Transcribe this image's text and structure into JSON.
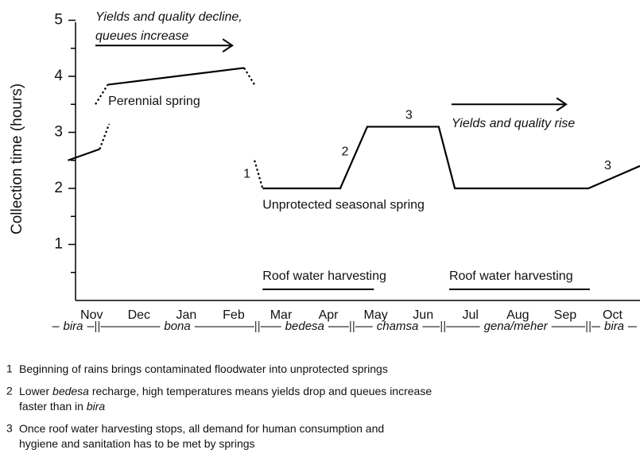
{
  "chart_data": {
    "type": "line",
    "y_label": "Collection time (hours)",
    "categories": [
      "Nov",
      "Dec",
      "Jan",
      "Feb",
      "Mar",
      "Apr",
      "May",
      "Jun",
      "Jul",
      "Aug",
      "Sep",
      "Oct"
    ],
    "xlim": [
      -0.34,
      11.58
    ],
    "ylim": [
      0,
      5
    ],
    "yticks": [
      1,
      2,
      3,
      4,
      5
    ],
    "yminorticks": [
      0.5,
      1.5,
      2.5,
      3.5,
      4.5
    ],
    "color": "#000000",
    "series": [
      {
        "style": "solid",
        "x": [
          -0.5,
          0.17
        ],
        "values": [
          2.5,
          2.7
        ]
      },
      {
        "style": "dotted",
        "x": [
          0.17,
          0.37
        ],
        "values": [
          2.7,
          3.15
        ]
      },
      {
        "style": "dotted",
        "x": [
          0.08,
          0.34
        ],
        "values": [
          3.5,
          3.85
        ]
      },
      {
        "style": "solid",
        "x": [
          0.34,
          3.22
        ],
        "values": [
          3.85,
          4.15
        ]
      },
      {
        "style": "dotted",
        "x": [
          3.22,
          3.44
        ],
        "values": [
          4.15,
          3.85
        ]
      },
      {
        "style": "dotted",
        "x": [
          3.44,
          3.61
        ],
        "values": [
          2.5,
          2.0
        ]
      },
      {
        "style": "solid",
        "x": [
          3.61,
          5.25,
          5.82,
          7.33,
          7.67,
          10.49,
          11.58
        ],
        "values": [
          2.0,
          2.0,
          3.1,
          3.1,
          2.0,
          2.0,
          2.4
        ]
      }
    ],
    "annotations": [
      {
        "text": "Perennial spring",
        "x": 0.35,
        "y": 3.55
      },
      {
        "text": "Unprotected seasonal spring",
        "x": 3.61,
        "y": 1.7
      },
      {
        "text": "1",
        "x": 3.28,
        "y": 2.25
      },
      {
        "text": "2",
        "x": 5.35,
        "y": 2.65
      },
      {
        "text": "3",
        "x": 6.7,
        "y": 3.3
      },
      {
        "text": "3",
        "x": 10.9,
        "y": 2.4
      }
    ],
    "arrows": [
      {
        "lines": [
          "Yields and quality decline,",
          "queues increase"
        ],
        "x": [
          0.08,
          2.97
        ],
        "y": 4.55,
        "text_y": 5.05
      },
      {
        "lines": [
          "Yields and quality rise"
        ],
        "x": [
          7.6,
          10.02
        ],
        "y": 3.5,
        "text_y": 3.15
      }
    ],
    "periods": [
      {
        "label": "Roof water harvesting",
        "x": [
          3.61,
          5.96
        ]
      },
      {
        "label": "Roof water harvesting",
        "x": [
          7.55,
          10.52
        ]
      }
    ],
    "seasons": [
      {
        "label": "bira",
        "x": [
          -0.9,
          0.12
        ]
      },
      {
        "label": "bona",
        "x": [
          0.12,
          3.5
        ]
      },
      {
        "label": "bedesa",
        "x": [
          3.5,
          5.5
        ]
      },
      {
        "label": "chamsa",
        "x": [
          5.5,
          7.42
        ]
      },
      {
        "label": "gena/meher",
        "x": [
          7.42,
          10.49
        ]
      },
      {
        "label": "bira",
        "x": [
          10.49,
          11.6
        ]
      }
    ],
    "notes": [
      {
        "number": "1",
        "lines": [
          [
            {
              "text": "Beginning of rains brings contaminated floodwater into unprotected springs"
            }
          ]
        ]
      },
      {
        "number": "2",
        "lines": [
          [
            {
              "text": "Lower "
            },
            {
              "text": "bedesa",
              "italic": true
            },
            {
              "text": " recharge, high temperatures means yields drop and queues increase"
            }
          ],
          [
            {
              "text": "faster than in "
            },
            {
              "text": "bira",
              "italic": true
            }
          ]
        ]
      },
      {
        "number": "3",
        "lines": [
          [
            {
              "text": "Once roof water harvesting stops, all demand for human consumption and"
            }
          ],
          [
            {
              "text": "hygiene and sanitation has to be met by springs"
            }
          ]
        ]
      }
    ]
  }
}
